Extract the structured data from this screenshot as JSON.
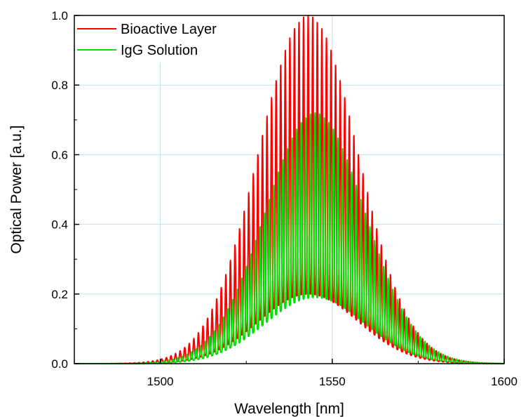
{
  "chart_data": {
    "type": "line",
    "title": "",
    "xlabel": "Wavelength [nm]",
    "ylabel": "Optical Power [a.u.]",
    "xlim": [
      1475,
      1600
    ],
    "ylim": [
      0.0,
      1.0
    ],
    "grid": true,
    "legend_position": "top-left",
    "x_ticks": [
      1500,
      1550,
      1600
    ],
    "x_tick_labels": [
      "1500",
      "1550",
      "1600"
    ],
    "y_ticks": [
      0.0,
      0.2,
      0.4,
      0.6,
      0.8,
      1.0
    ],
    "y_tick_labels": [
      "0.0",
      "0.2",
      "0.4",
      "0.6",
      "0.8",
      "1.0"
    ],
    "fringe_period_nm": 1.33,
    "series": [
      {
        "name": "Bioactive Layer",
        "color": "#ff0000",
        "envelope_center_nm": 1543,
        "envelope_sigma_nm": 14.5,
        "peak_max": 1.0,
        "valley_max": 0.2
      },
      {
        "name": "IgG Solution",
        "color": "#00e000",
        "envelope_center_nm": 1545,
        "envelope_sigma_nm": 14.5,
        "peak_max": 0.72,
        "valley_max": 0.19
      }
    ]
  }
}
